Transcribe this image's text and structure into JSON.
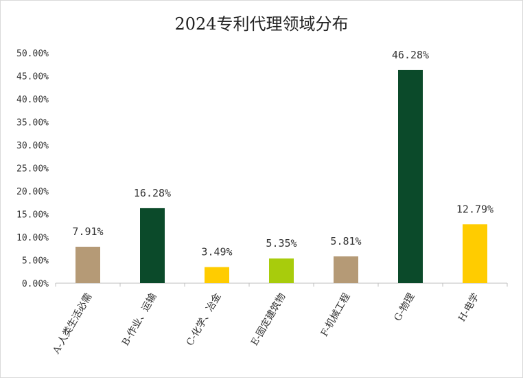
{
  "chart_data": {
    "type": "bar",
    "title": "2024专利代理领域分布",
    "categories": [
      "A-人类生活必需",
      "B-作业、运输",
      "C-化学、冶金",
      "E-固定建筑物",
      "F-机械工程",
      "G-物理",
      "H-电学"
    ],
    "values": [
      7.91,
      16.28,
      3.49,
      5.35,
      5.81,
      46.28,
      12.79
    ],
    "data_labels": [
      "7.91%",
      "16.28%",
      "3.49%",
      "5.35%",
      "5.81%",
      "46.28%",
      "12.79%"
    ],
    "colors": [
      "#b59a76",
      "#0b4a2a",
      "#ffcc00",
      "#a8cc0c",
      "#b59a76",
      "#0b4a2a",
      "#ffcc00"
    ],
    "ylim": [
      0,
      50
    ],
    "yticks": [
      "0.00%",
      "5.00%",
      "10.00%",
      "15.00%",
      "20.00%",
      "25.00%",
      "30.00%",
      "35.00%",
      "40.00%",
      "45.00%",
      "50.00%"
    ],
    "xlabel": "",
    "ylabel": "",
    "grid": false,
    "legend": "none"
  }
}
